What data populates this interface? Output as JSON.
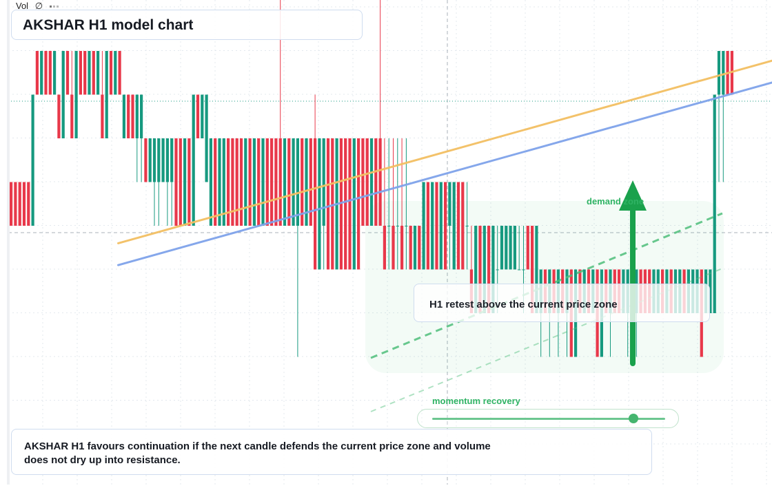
{
  "header": {
    "title": "AKSHAR H1 model chart"
  },
  "volume_legend": {
    "label": "Vol",
    "symbol": "∅"
  },
  "annotation": {
    "text": "H1 retest above the current price zone"
  },
  "demand_zone": {
    "label": "demand zone"
  },
  "momentum": {
    "label": "momentum recovery",
    "level": 0.86
  },
  "note": {
    "text": "AKSHAR H1 favours continuation if the next candle defends the current price zone and volume does not dry up into resistance."
  },
  "colors": {
    "up": "#16997f",
    "down": "#e8384a",
    "trend_orange": "#f3bf63",
    "trend_blue": "#7fa3ea",
    "trend_green": "#4fbf7b",
    "arrow": "#1aa14c",
    "grid": "#e3e8ee"
  },
  "chart_data": {
    "type": "candlestick",
    "timeframe": "H1",
    "bars": [
      {
        "o": 3,
        "h": 3,
        "l": 2,
        "c": 2
      },
      {
        "o": 3,
        "h": 3,
        "l": 2,
        "c": 2
      },
      {
        "o": 3,
        "h": 3,
        "l": 2,
        "c": 2
      },
      {
        "o": 3,
        "h": 3,
        "l": 2,
        "c": 2
      },
      {
        "o": 3,
        "h": 3,
        "l": 2,
        "c": 2
      },
      {
        "o": 2,
        "h": 5,
        "l": 2,
        "c": 5
      },
      {
        "o": 6,
        "h": 6,
        "l": 5,
        "c": 5
      },
      {
        "o": 5,
        "h": 6,
        "l": 5,
        "c": 6
      },
      {
        "o": 6,
        "h": 6,
        "l": 5,
        "c": 5
      },
      {
        "o": 6,
        "h": 6,
        "l": 5,
        "c": 5
      },
      {
        "o": 5,
        "h": 6,
        "l": 5,
        "c": 6
      },
      {
        "o": 5,
        "h": 5,
        "l": 4,
        "c": 4
      },
      {
        "o": 4,
        "h": 6,
        "l": 4,
        "c": 6
      },
      {
        "o": 6,
        "h": 6,
        "l": 5,
        "c": 5
      },
      {
        "o": 5,
        "h": 6,
        "l": 4,
        "c": 4
      },
      {
        "o": 4,
        "h": 6,
        "l": 4,
        "c": 6
      },
      {
        "o": 6,
        "h": 6,
        "l": 5,
        "c": 5
      },
      {
        "o": 6,
        "h": 6,
        "l": 5,
        "c": 5
      },
      {
        "o": 5,
        "h": 6,
        "l": 5,
        "c": 6
      },
      {
        "o": 6,
        "h": 6,
        "l": 5,
        "c": 5
      },
      {
        "o": 5,
        "h": 6,
        "l": 5,
        "c": 6
      },
      {
        "o": 5,
        "h": 6,
        "l": 4,
        "c": 4
      },
      {
        "o": 4,
        "h": 6,
        "l": 4,
        "c": 6
      },
      {
        "o": 6,
        "h": 6,
        "l": 5,
        "c": 5
      },
      {
        "o": 5,
        "h": 6,
        "l": 5,
        "c": 6
      },
      {
        "o": 6,
        "h": 6,
        "l": 5,
        "c": 5
      },
      {
        "o": 4,
        "h": 5,
        "l": 4,
        "c": 5
      },
      {
        "o": 5,
        "h": 5,
        "l": 4,
        "c": 4
      },
      {
        "o": 5,
        "h": 5,
        "l": 4,
        "c": 4
      },
      {
        "o": 4,
        "h": 5,
        "l": 3,
        "c": 5
      },
      {
        "o": 4,
        "h": 5,
        "l": 3,
        "c": 5
      },
      {
        "o": 4,
        "h": 4,
        "l": 3,
        "c": 3
      },
      {
        "o": 3,
        "h": 4,
        "l": 3,
        "c": 4
      },
      {
        "o": 3,
        "h": 4,
        "l": 2,
        "c": 4
      },
      {
        "o": 3,
        "h": 4,
        "l": 2,
        "c": 4
      },
      {
        "o": 3,
        "h": 4,
        "l": 3,
        "c": 4
      },
      {
        "o": 3,
        "h": 4,
        "l": 2,
        "c": 4
      },
      {
        "o": 3,
        "h": 4,
        "l": 2,
        "c": 4
      },
      {
        "o": 4,
        "h": 4,
        "l": 2,
        "c": 2
      },
      {
        "o": 4,
        "h": 4,
        "l": 2,
        "c": 2
      },
      {
        "o": 2,
        "h": 4,
        "l": 2,
        "c": 4
      },
      {
        "o": 4,
        "h": 4,
        "l": 2,
        "c": 2
      },
      {
        "o": 2,
        "h": 5,
        "l": 2,
        "c": 5
      },
      {
        "o": 5,
        "h": 5,
        "l": 4,
        "c": 4
      },
      {
        "o": 4,
        "h": 5,
        "l": 4,
        "c": 5
      },
      {
        "o": 3,
        "h": 5,
        "l": 3,
        "c": 5
      },
      {
        "o": 2,
        "h": 4,
        "l": 2,
        "c": 4
      },
      {
        "o": 4,
        "h": 4,
        "l": 2,
        "c": 2
      },
      {
        "o": 2,
        "h": 4,
        "l": 2,
        "c": 4
      },
      {
        "o": 2,
        "h": 4,
        "l": 2,
        "c": 4
      },
      {
        "o": 4,
        "h": 4,
        "l": 2,
        "c": 2
      },
      {
        "o": 4,
        "h": 4,
        "l": 2,
        "c": 2
      },
      {
        "o": 4,
        "h": 4,
        "l": 2,
        "c": 2
      },
      {
        "o": 4,
        "h": 4,
        "l": 2,
        "c": 2
      },
      {
        "o": 2,
        "h": 4,
        "l": 2,
        "c": 4
      },
      {
        "o": 4,
        "h": 4,
        "l": 2,
        "c": 2
      },
      {
        "o": 2,
        "h": 4,
        "l": 2,
        "c": 4
      },
      {
        "o": 4,
        "h": 4,
        "l": 2,
        "c": 2
      },
      {
        "o": 2,
        "h": 4,
        "l": 2,
        "c": 4
      },
      {
        "o": 4,
        "h": 4,
        "l": 2,
        "c": 2
      },
      {
        "o": 4,
        "h": 4,
        "l": 2,
        "c": 2
      },
      {
        "o": 4,
        "h": 4,
        "l": 2,
        "c": 2
      },
      {
        "o": 4,
        "h": 9.2,
        "l": 2,
        "c": 2
      },
      {
        "o": 2,
        "h": 4,
        "l": 2,
        "c": 4
      },
      {
        "o": 4,
        "h": 4,
        "l": 2,
        "c": 2
      },
      {
        "o": 2,
        "h": 4,
        "l": 2,
        "c": 4
      },
      {
        "o": 2,
        "h": 4,
        "l": -1,
        "c": 4
      },
      {
        "o": 4,
        "h": 4,
        "l": 2,
        "c": 2
      },
      {
        "o": 2,
        "h": 4,
        "l": 2,
        "c": 4
      },
      {
        "o": 4,
        "h": 4,
        "l": 2,
        "c": 2
      },
      {
        "o": 4,
        "h": 5,
        "l": 1,
        "c": 1
      },
      {
        "o": 1,
        "h": 4,
        "l": 1,
        "c": 4
      },
      {
        "o": 2,
        "h": 4,
        "l": 1,
        "c": 4
      },
      {
        "o": 4,
        "h": 4,
        "l": 1,
        "c": 1
      },
      {
        "o": 4,
        "h": 4,
        "l": 1,
        "c": 1
      },
      {
        "o": 1,
        "h": 4,
        "l": 1,
        "c": 4
      },
      {
        "o": 4,
        "h": 4,
        "l": 1,
        "c": 1
      },
      {
        "o": 4,
        "h": 4,
        "l": 1,
        "c": 1
      },
      {
        "o": 4,
        "h": 4,
        "l": 1,
        "c": 1
      },
      {
        "o": 1,
        "h": 4,
        "l": 1,
        "c": 4
      },
      {
        "o": 4,
        "h": 4,
        "l": 1,
        "c": 1
      },
      {
        "o": 4,
        "h": 4,
        "l": 2,
        "c": 2
      },
      {
        "o": 4,
        "h": 4,
        "l": 2,
        "c": 2
      },
      {
        "o": 2,
        "h": 4,
        "l": 2,
        "c": 4
      },
      {
        "o": 4,
        "h": 4,
        "l": 2,
        "c": 2
      },
      {
        "o": 4,
        "h": 7.2,
        "l": 2,
        "c": 2
      },
      {
        "o": 2,
        "h": 4,
        "l": 1,
        "c": 1
      },
      {
        "o": 2,
        "h": 4,
        "l": 1,
        "c": 2
      },
      {
        "o": 2,
        "h": 4,
        "l": 1,
        "c": 1
      },
      {
        "o": 2,
        "h": 4,
        "l": 1,
        "c": 2
      },
      {
        "o": 2,
        "h": 4,
        "l": 1,
        "c": 1
      },
      {
        "o": 2,
        "h": 4,
        "l": 1,
        "c": 2
      },
      {
        "o": 2,
        "h": 2,
        "l": 1,
        "c": 1
      },
      {
        "o": 1,
        "h": 2,
        "l": 1,
        "c": 2
      },
      {
        "o": 2,
        "h": 2,
        "l": 1,
        "c": 1
      },
      {
        "o": 1,
        "h": 3,
        "l": 1,
        "c": 3
      },
      {
        "o": 3,
        "h": 3,
        "l": 1,
        "c": 1
      },
      {
        "o": 1,
        "h": 3,
        "l": 1,
        "c": 3
      },
      {
        "o": 3,
        "h": 3,
        "l": 1,
        "c": 1
      },
      {
        "o": 1,
        "h": 3,
        "l": 1,
        "c": 3
      },
      {
        "o": 3,
        "h": 3,
        "l": 1,
        "c": 1
      },
      {
        "o": 2,
        "h": 3,
        "l": 1,
        "c": 3
      },
      {
        "o": 1,
        "h": 3,
        "l": 1,
        "c": 3
      },
      {
        "o": 3,
        "h": 3,
        "l": 1,
        "c": 1
      },
      {
        "o": 3,
        "h": 3,
        "l": 1,
        "c": 1
      },
      {
        "o": 2,
        "h": 3,
        "l": 1,
        "c": 2
      },
      {
        "o": 1,
        "h": 2,
        "l": 0,
        "c": 0
      },
      {
        "o": 0,
        "h": 2,
        "l": 0,
        "c": 2
      },
      {
        "o": 2,
        "h": 2,
        "l": 0,
        "c": 0
      },
      {
        "o": 0,
        "h": 2,
        "l": 0,
        "c": 2
      },
      {
        "o": 2,
        "h": 2,
        "l": 0,
        "c": 0
      },
      {
        "o": 0,
        "h": 2,
        "l": 0,
        "c": 2
      },
      {
        "o": 1,
        "h": 2,
        "l": 0,
        "c": 1
      },
      {
        "o": 1,
        "h": 2,
        "l": 1,
        "c": 2
      },
      {
        "o": 1,
        "h": 2,
        "l": 1,
        "c": 2
      },
      {
        "o": 1,
        "h": 2,
        "l": 1,
        "c": 2
      },
      {
        "o": 1,
        "h": 2,
        "l": 1,
        "c": 2
      },
      {
        "o": 1,
        "h": 2,
        "l": 1,
        "c": 1
      },
      {
        "o": 1,
        "h": 2,
        "l": 0,
        "c": 1
      },
      {
        "o": 2,
        "h": 2,
        "l": 1,
        "c": 1
      },
      {
        "o": 2,
        "h": 2,
        "l": 0,
        "c": 0
      },
      {
        "o": 0,
        "h": 2,
        "l": 0,
        "c": 2
      },
      {
        "o": 0,
        "h": 1,
        "l": -1,
        "c": 1
      },
      {
        "o": 1,
        "h": 1,
        "l": 0,
        "c": 0
      },
      {
        "o": 0,
        "h": 1,
        "l": -1,
        "c": 1
      },
      {
        "o": 1,
        "h": 1,
        "l": 0,
        "c": 0
      },
      {
        "o": 0,
        "h": 1,
        "l": -1,
        "c": 1
      },
      {
        "o": 1,
        "h": 1,
        "l": 0,
        "c": 0
      },
      {
        "o": 0,
        "h": 1,
        "l": -1,
        "c": 1
      },
      {
        "o": 1,
        "h": 1,
        "l": -1,
        "c": -1
      },
      {
        "o": -1,
        "h": 1,
        "l": -1,
        "c": 1
      },
      {
        "o": 1,
        "h": 1,
        "l": 0,
        "c": 0
      },
      {
        "o": 0,
        "h": 1,
        "l": 0,
        "c": 1
      },
      {
        "o": 1,
        "h": 1,
        "l": 0,
        "c": 0
      },
      {
        "o": 0,
        "h": 1,
        "l": 0,
        "c": 1
      },
      {
        "o": 1,
        "h": 1,
        "l": -1,
        "c": -1
      },
      {
        "o": -1,
        "h": 1,
        "l": -1,
        "c": 1
      },
      {
        "o": 1,
        "h": 1,
        "l": 0,
        "c": 0
      },
      {
        "o": 0,
        "h": 1,
        "l": -1,
        "c": 1
      },
      {
        "o": 1,
        "h": 1,
        "l": 0,
        "c": 0
      },
      {
        "o": 1,
        "h": 1,
        "l": 0,
        "c": 0
      },
      {
        "o": 0,
        "h": 1,
        "l": 0,
        "c": 1
      },
      {
        "o": 0,
        "h": 1,
        "l": -1,
        "c": 1
      },
      {
        "o": 1,
        "h": 1,
        "l": 0,
        "c": 0
      },
      {
        "o": 0,
        "h": 1,
        "l": -1,
        "c": 1
      },
      {
        "o": 1,
        "h": 1,
        "l": 0,
        "c": 0
      },
      {
        "o": 1,
        "h": 1,
        "l": 0,
        "c": 0
      },
      {
        "o": 1,
        "h": 1,
        "l": 0,
        "c": 0
      },
      {
        "o": 0,
        "h": 1,
        "l": 0,
        "c": 1
      },
      {
        "o": 0,
        "h": 1,
        "l": 0,
        "c": 1
      },
      {
        "o": 1,
        "h": 1,
        "l": 0,
        "c": 0
      },
      {
        "o": 0,
        "h": 1,
        "l": 0,
        "c": 1
      },
      {
        "o": 1,
        "h": 1,
        "l": 0,
        "c": 0
      },
      {
        "o": 0,
        "h": 1,
        "l": 0,
        "c": 1
      },
      {
        "o": 0,
        "h": 1,
        "l": 0,
        "c": 1
      },
      {
        "o": 1,
        "h": 1,
        "l": 0,
        "c": 0
      },
      {
        "o": 0,
        "h": 1,
        "l": 0,
        "c": 1
      },
      {
        "o": 0,
        "h": 1,
        "l": 0,
        "c": 1
      },
      {
        "o": 0,
        "h": 1,
        "l": 0,
        "c": 1
      },
      {
        "o": 1,
        "h": 1,
        "l": -1,
        "c": -1
      },
      {
        "o": 0,
        "h": 1,
        "l": 0,
        "c": 1
      },
      {
        "o": 0,
        "h": 1,
        "l": 0,
        "c": 1
      },
      {
        "o": 0,
        "h": 5,
        "l": 0,
        "c": 5
      },
      {
        "o": 5,
        "h": 6,
        "l": 3,
        "c": 6
      },
      {
        "o": 5,
        "h": 6,
        "l": 3,
        "c": 6
      },
      {
        "o": 6,
        "h": 6,
        "l": 5,
        "c": 5
      },
      {
        "o": 6,
        "h": 6,
        "l": 5,
        "c": 5
      }
    ],
    "trendlines": [
      {
        "name": "",
        "from": [
          25,
          1.6
        ],
        "to": [
          180,
          5.9
        ]
      },
      {
        "name": "",
        "from": [
          25,
          1.1
        ],
        "to": [
          180,
          5.4
        ]
      }
    ],
    "grid": true,
    "price_marker": 4.85
  }
}
